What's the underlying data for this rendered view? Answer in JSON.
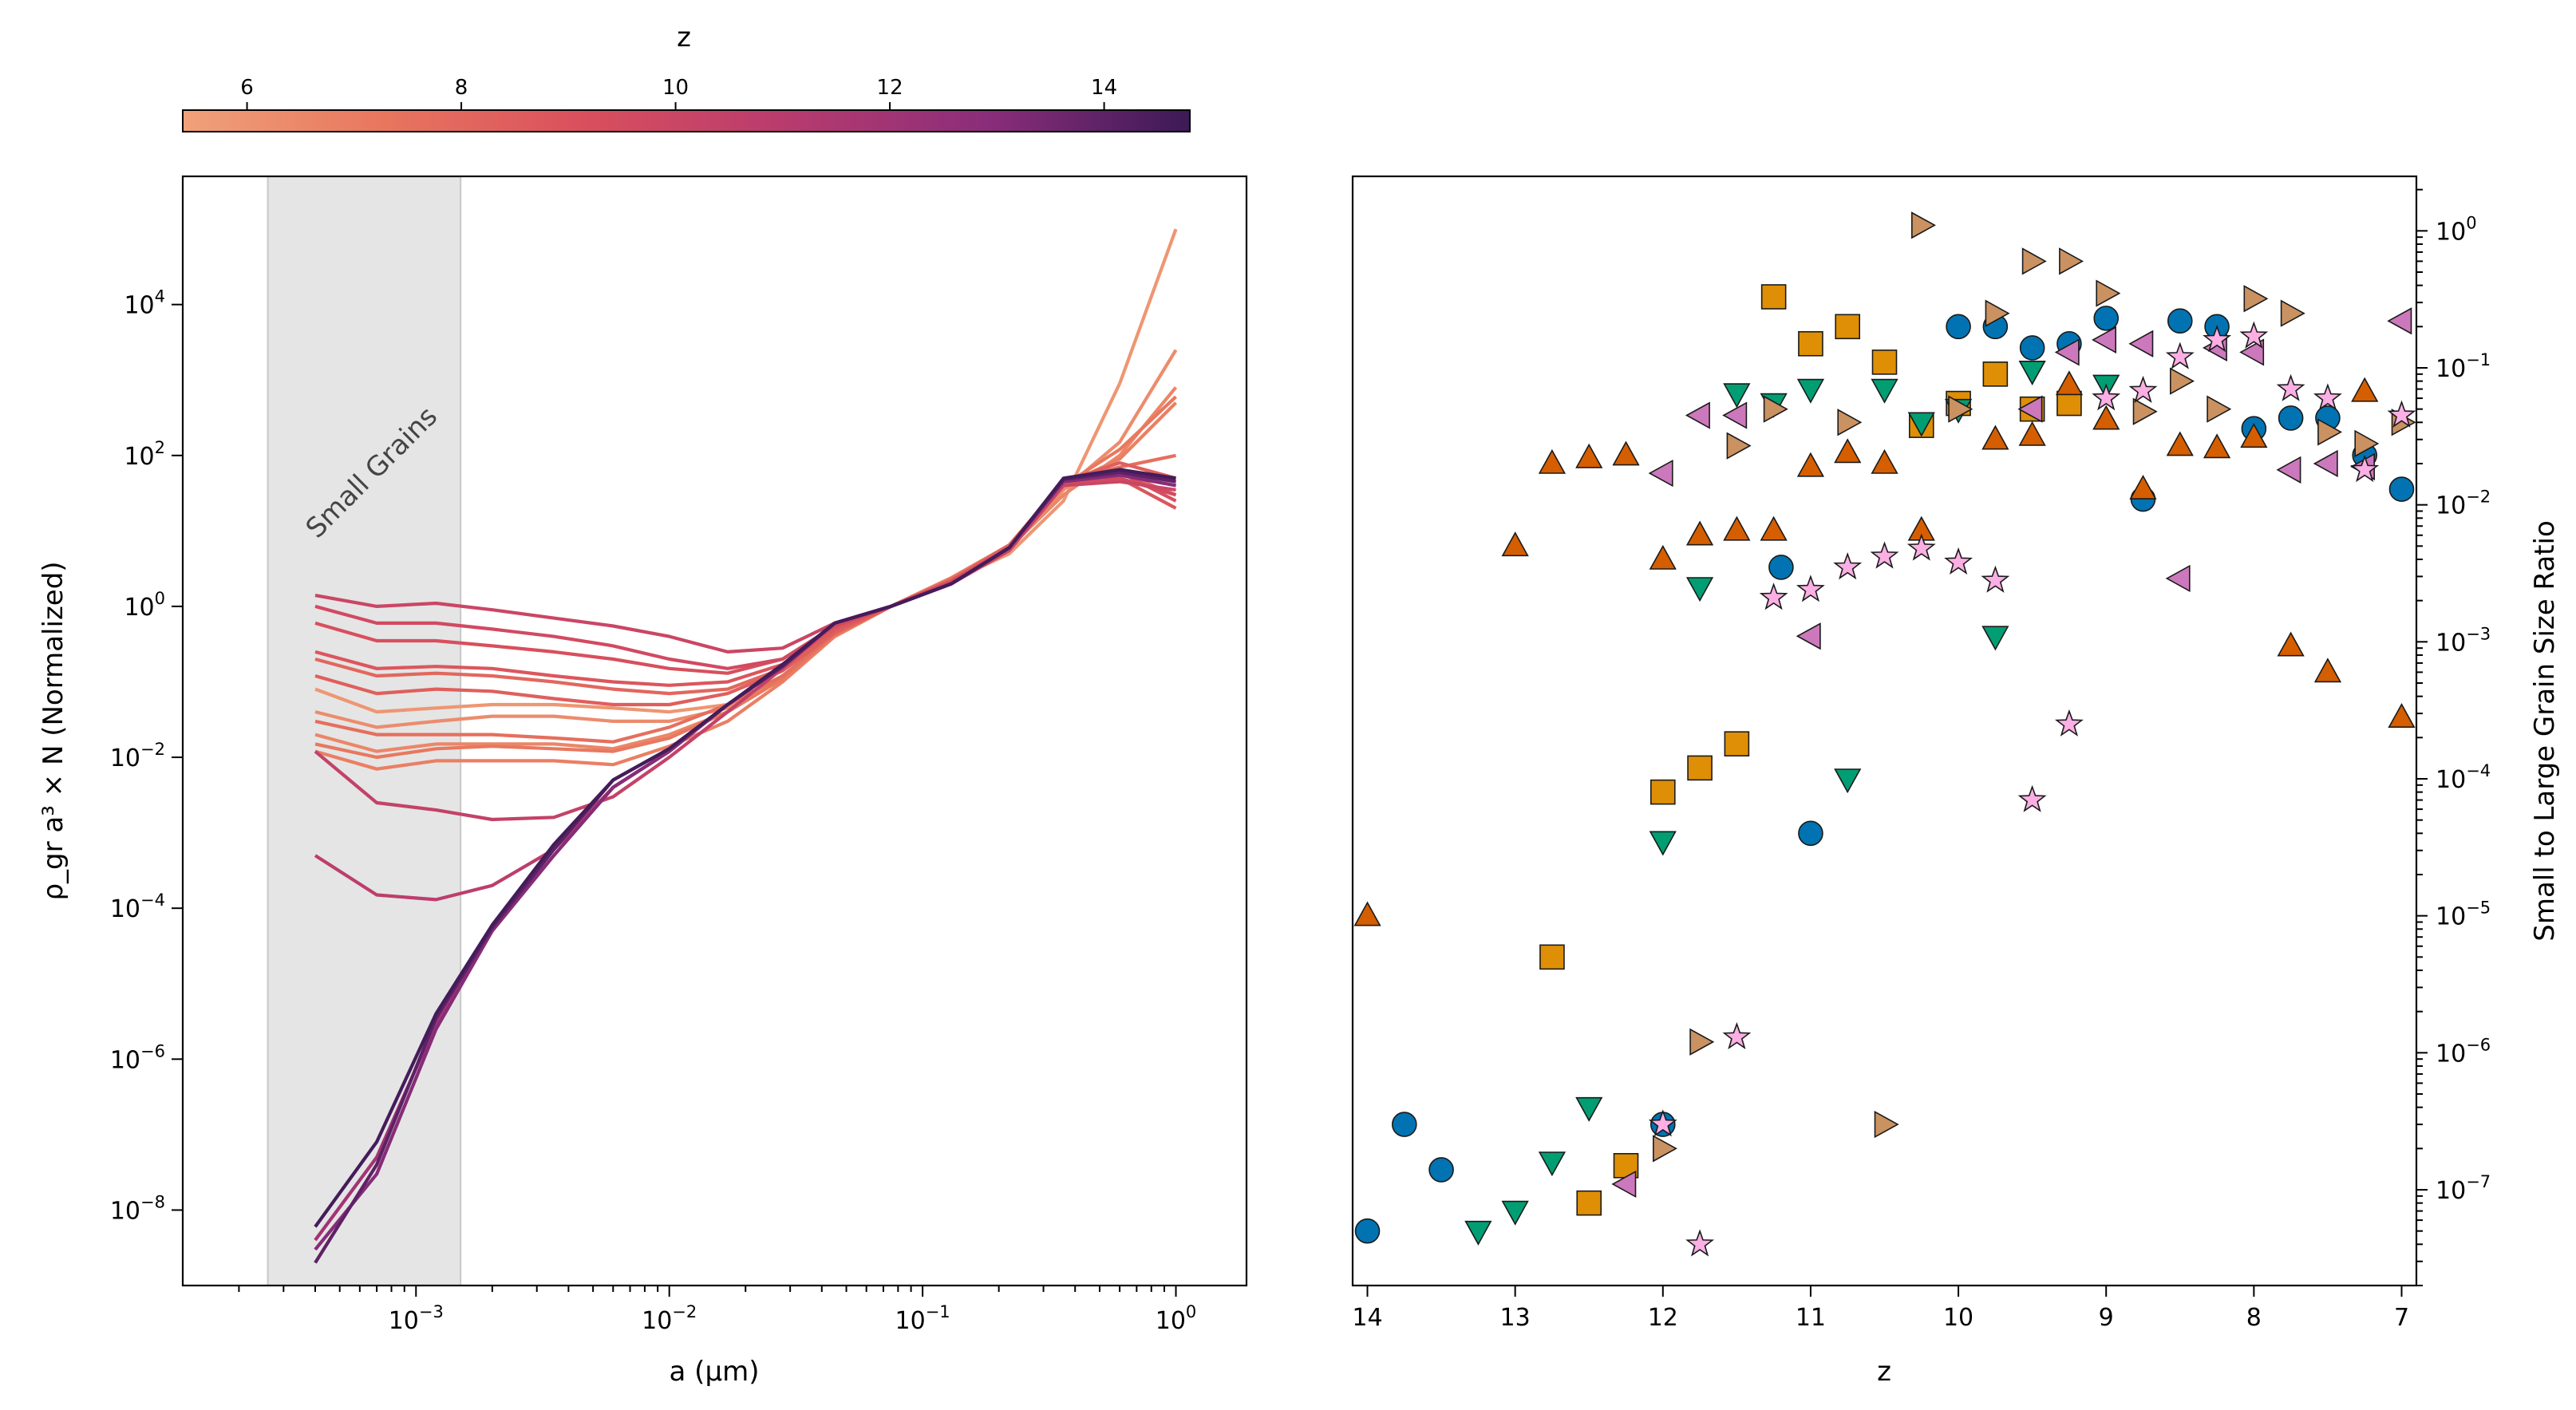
{
  "chart_data": [
    {
      "type": "line",
      "title": "",
      "xlabel": "a (μm)",
      "ylabel": "ρ_gr a³ × N (Normalized)",
      "xscale": "log",
      "yscale": "log",
      "xlim": [
        0.00012,
        1.9
      ],
      "ylim": [
        1e-09,
        500000.0
      ],
      "xticks": [
        {
          "value": 0.001,
          "label": "10",
          "exp": "−3"
        },
        {
          "value": 0.01,
          "label": "10",
          "exp": "−2"
        },
        {
          "value": 0.1,
          "label": "10",
          "exp": "−1"
        },
        {
          "value": 1,
          "label": "10",
          "exp": "0"
        }
      ],
      "yticks": [
        {
          "value": 1e-08,
          "label": "10",
          "exp": "−8"
        },
        {
          "value": 1e-06,
          "label": "10",
          "exp": "−6"
        },
        {
          "value": 0.0001,
          "label": "10",
          "exp": "−4"
        },
        {
          "value": 0.01,
          "label": "10",
          "exp": "−2"
        },
        {
          "value": 1,
          "label": "10",
          "exp": "0"
        },
        {
          "value": 100,
          "label": "10",
          "exp": "2"
        },
        {
          "value": 10000,
          "label": "10",
          "exp": "4"
        }
      ],
      "shaded_region": {
        "x": [
          0.00026,
          0.0015
        ],
        "label": "Small Grains"
      },
      "colorbar": {
        "label": "z",
        "range": [
          5.4,
          14.8
        ],
        "ticks": [
          6,
          8,
          10,
          12,
          14
        ],
        "colors": [
          "#f0a17a",
          "#e8765e",
          "#d94f5d",
          "#b83b6e",
          "#8a2d7a",
          "#3c1a56"
        ]
      },
      "x": [
        0.0004,
        0.0007,
        0.0012,
        0.002,
        0.0035,
        0.006,
        0.01,
        0.017,
        0.028,
        0.045,
        0.075,
        0.13,
        0.22,
        0.36,
        0.6,
        1.0
      ],
      "series": [
        {
          "z": 5.9,
          "values": [
            0.08,
            0.04,
            0.045,
            0.05,
            0.05,
            0.045,
            0.04,
            0.05,
            0.12,
            0.4,
            1,
            2.2,
            5,
            25,
            900,
            100000
          ]
        },
        {
          "z": 6.3,
          "values": [
            0.04,
            0.025,
            0.03,
            0.035,
            0.035,
            0.03,
            0.03,
            0.045,
            0.12,
            0.42,
            1,
            2.3,
            6,
            35,
            150,
            2500
          ]
        },
        {
          "z": 6.6,
          "values": [
            0.02,
            0.012,
            0.015,
            0.015,
            0.015,
            0.013,
            0.02,
            0.04,
            0.11,
            0.42,
            1,
            2.4,
            6,
            30,
            100,
            800
          ]
        },
        {
          "z": 6.9,
          "values": [
            0.012,
            0.007,
            0.009,
            0.009,
            0.009,
            0.008,
            0.014,
            0.03,
            0.1,
            0.4,
            1,
            2.4,
            6.5,
            40,
            90,
            500
          ]
        },
        {
          "z": 7.2,
          "values": [
            0.015,
            0.01,
            0.013,
            0.014,
            0.013,
            0.012,
            0.018,
            0.04,
            0.11,
            0.42,
            1,
            2.3,
            6,
            40,
            120,
            600
          ]
        },
        {
          "z": 7.6,
          "values": [
            0.03,
            0.02,
            0.02,
            0.02,
            0.018,
            0.016,
            0.025,
            0.05,
            0.12,
            0.43,
            1,
            2.3,
            6.5,
            45,
            70,
            100
          ]
        },
        {
          "z": 8.0,
          "values": [
            0.2,
            0.12,
            0.13,
            0.12,
            0.1,
            0.08,
            0.07,
            0.08,
            0.15,
            0.45,
            1,
            2.2,
            6,
            40,
            60,
            30
          ]
        },
        {
          "z": 8.4,
          "values": [
            0.12,
            0.07,
            0.08,
            0.075,
            0.06,
            0.05,
            0.05,
            0.07,
            0.14,
            0.45,
            1,
            2.2,
            6.5,
            45,
            80,
            50
          ]
        },
        {
          "z": 8.8,
          "values": [
            0.25,
            0.15,
            0.16,
            0.15,
            0.12,
            0.1,
            0.09,
            0.1,
            0.17,
            0.5,
            1,
            2.2,
            6,
            40,
            50,
            20
          ]
        },
        {
          "z": 9.2,
          "values": [
            0.6,
            0.35,
            0.35,
            0.3,
            0.25,
            0.2,
            0.15,
            0.13,
            0.2,
            0.55,
            1,
            2.1,
            6,
            45,
            60,
            25
          ]
        },
        {
          "z": 9.6,
          "values": [
            1.0,
            0.6,
            0.6,
            0.5,
            0.4,
            0.3,
            0.2,
            0.15,
            0.2,
            0.55,
            1,
            2.1,
            6,
            45,
            50,
            30
          ]
        },
        {
          "z": 10.0,
          "values": [
            1.4,
            1.0,
            1.1,
            0.9,
            0.7,
            0.55,
            0.4,
            0.25,
            0.28,
            0.6,
            1,
            2.0,
            5.5,
            40,
            45,
            35
          ]
        },
        {
          "z": 10.4,
          "values": [
            0.012,
            0.0025,
            0.002,
            0.0015,
            0.0016,
            0.003,
            0.01,
            0.04,
            0.15,
            0.6,
            1,
            2.0,
            6,
            45,
            60,
            50
          ]
        },
        {
          "z": 10.8,
          "values": [
            0.0005,
            0.00015,
            0.00013,
            0.0002,
            0.0006,
            0.004,
            0.012,
            0.05,
            0.16,
            0.6,
            1,
            2.0,
            6,
            45,
            60,
            45
          ]
        },
        {
          "z": 12.0,
          "values": [
            4e-09,
            5e-08,
            3e-06,
            5e-05,
            0.0005,
            0.004,
            0.012,
            0.05,
            0.16,
            0.6,
            1,
            2.0,
            6,
            45,
            55,
            40
          ]
        },
        {
          "z": 13.0,
          "values": [
            3e-09,
            3e-08,
            2.5e-06,
            5e-05,
            0.0005,
            0.004,
            0.012,
            0.05,
            0.16,
            0.6,
            1,
            2.0,
            6,
            45,
            55,
            40
          ]
        },
        {
          "z": 14.0,
          "values": [
            2e-09,
            4e-08,
            3.5e-06,
            5.5e-05,
            0.0006,
            0.005,
            0.013,
            0.05,
            0.16,
            0.6,
            1,
            2.0,
            6,
            48,
            60,
            45
          ]
        },
        {
          "z": 14.6,
          "values": [
            6e-09,
            8e-08,
            4e-06,
            6e-05,
            0.0007,
            0.005,
            0.013,
            0.05,
            0.17,
            0.6,
            1,
            2.0,
            6,
            50,
            65,
            50
          ]
        }
      ]
    },
    {
      "type": "scatter",
      "title": "",
      "xlabel": "z",
      "ylabel": "Small to Large Grain Size Ratio",
      "xscale": "linear",
      "xlim": [
        14.1,
        6.9
      ],
      "xreversed": true,
      "yscale": "log",
      "ylim": [
        2e-08,
        2.5
      ],
      "xticks": [
        14,
        13,
        12,
        11,
        10,
        9,
        8,
        7
      ],
      "yticks": [
        {
          "value": 1e-07,
          "label": "10",
          "exp": "−7"
        },
        {
          "value": 1e-06,
          "label": "10",
          "exp": "−6"
        },
        {
          "value": 1e-05,
          "label": "10",
          "exp": "−5"
        },
        {
          "value": 0.0001,
          "label": "10",
          "exp": "−4"
        },
        {
          "value": 0.001,
          "label": "10",
          "exp": "−3"
        },
        {
          "value": 0.01,
          "label": "10",
          "exp": "−2"
        },
        {
          "value": 0.1,
          "label": "10",
          "exp": "−1"
        },
        {
          "value": 1,
          "label": "10",
          "exp": "0"
        }
      ],
      "yaxis_side": "right",
      "series": [
        {
          "name": "circle",
          "marker": "circle",
          "color": "#0173b2",
          "points": [
            [
              14.0,
              5e-08
            ],
            [
              13.75,
              3e-07
            ],
            [
              13.5,
              1.4e-07
            ],
            [
              12.0,
              3e-07
            ],
            [
              11.2,
              0.0035
            ],
            [
              11.0,
              4e-05
            ],
            [
              10.0,
              0.2
            ],
            [
              9.75,
              0.2
            ],
            [
              9.5,
              0.14
            ],
            [
              9.25,
              0.15
            ],
            [
              9.0,
              0.23
            ],
            [
              8.75,
              0.011
            ],
            [
              8.5,
              0.22
            ],
            [
              8.25,
              0.2
            ],
            [
              8.0,
              0.036
            ],
            [
              7.75,
              0.043
            ],
            [
              7.5,
              0.043
            ],
            [
              7.25,
              0.023
            ],
            [
              7.0,
              0.013
            ]
          ]
        },
        {
          "name": "square",
          "marker": "square",
          "color": "#de8f05",
          "points": [
            [
              12.75,
              5e-06
            ],
            [
              12.5,
              8e-08
            ],
            [
              12.25,
              1.5e-07
            ],
            [
              12.0,
              8e-05
            ],
            [
              11.75,
              0.00012
            ],
            [
              11.5,
              0.00018
            ],
            [
              11.25,
              0.33
            ],
            [
              11.0,
              0.15
            ],
            [
              10.75,
              0.2
            ],
            [
              10.5,
              0.11
            ],
            [
              10.25,
              0.038
            ],
            [
              10.0,
              0.055
            ],
            [
              9.75,
              0.09
            ],
            [
              9.5,
              0.05
            ],
            [
              9.25,
              0.055
            ]
          ]
        },
        {
          "name": "triangle-down",
          "marker": "triangle-down",
          "color": "#029e73",
          "points": [
            [
              13.25,
              5e-08
            ],
            [
              13.0,
              7e-08
            ],
            [
              12.75,
              1.6e-07
            ],
            [
              12.5,
              4e-07
            ],
            [
              12.0,
              3.5e-05
            ],
            [
              11.75,
              0.0025
            ],
            [
              11.5,
              0.065
            ],
            [
              11.25,
              0.055
            ],
            [
              11.0,
              0.07
            ],
            [
              10.75,
              0.0001
            ],
            [
              10.5,
              0.07
            ],
            [
              10.25,
              0.04
            ],
            [
              10.0,
              0.05
            ],
            [
              9.75,
              0.0011
            ],
            [
              9.5,
              0.095
            ],
            [
              9.0,
              0.075
            ]
          ]
        },
        {
          "name": "triangle-up",
          "marker": "triangle-up",
          "color": "#d55e00",
          "points": [
            [
              14.0,
              1e-05
            ],
            [
              13.0,
              0.005
            ],
            [
              12.75,
              0.02
            ],
            [
              12.5,
              0.022
            ],
            [
              12.25,
              0.023
            ],
            [
              12.0,
              0.004
            ],
            [
              11.75,
              0.006
            ],
            [
              11.5,
              0.0065
            ],
            [
              11.25,
              0.0065
            ],
            [
              11.0,
              0.019
            ],
            [
              10.75,
              0.024
            ],
            [
              10.5,
              0.02
            ],
            [
              10.25,
              0.0065
            ],
            [
              9.75,
              0.03
            ],
            [
              9.5,
              0.032
            ],
            [
              9.25,
              0.075
            ],
            [
              9.0,
              0.042
            ],
            [
              8.75,
              0.013
            ],
            [
              8.5,
              0.027
            ],
            [
              8.25,
              0.026
            ],
            [
              8.0,
              0.031
            ],
            [
              7.75,
              0.00093
            ],
            [
              7.5,
              0.0006
            ],
            [
              7.25,
              0.067
            ],
            [
              7.0,
              0.00028
            ]
          ]
        },
        {
          "name": "triangle-left",
          "marker": "triangle-left",
          "color": "#cc78bc",
          "points": [
            [
              12.25,
              1.1e-07
            ],
            [
              12.0,
              0.017
            ],
            [
              11.75,
              0.045
            ],
            [
              11.5,
              0.045
            ],
            [
              11.0,
              0.0011
            ],
            [
              9.5,
              0.05
            ],
            [
              9.25,
              0.13
            ],
            [
              9.0,
              0.16
            ],
            [
              8.75,
              0.15
            ],
            [
              8.5,
              0.0029
            ],
            [
              8.25,
              0.14
            ],
            [
              8.0,
              0.13
            ],
            [
              7.75,
              0.018
            ],
            [
              7.5,
              0.02
            ],
            [
              7.25,
              0.019
            ],
            [
              7.0,
              0.22
            ]
          ]
        },
        {
          "name": "triangle-right",
          "marker": "triangle-right",
          "color": "#ca9161",
          "points": [
            [
              12.0,
              2e-07
            ],
            [
              11.75,
              1.2e-06
            ],
            [
              11.5,
              0.027
            ],
            [
              11.25,
              0.05
            ],
            [
              10.75,
              0.04
            ],
            [
              10.5,
              3e-07
            ],
            [
              10.25,
              1.1
            ],
            [
              10.0,
              0.05
            ],
            [
              9.75,
              0.25
            ],
            [
              9.5,
              0.6
            ],
            [
              9.25,
              0.6
            ],
            [
              9.0,
              0.35
            ],
            [
              8.75,
              0.048
            ],
            [
              8.5,
              0.08
            ],
            [
              8.25,
              0.05
            ],
            [
              8.0,
              0.32
            ],
            [
              7.75,
              0.25
            ],
            [
              7.5,
              0.034
            ],
            [
              7.25,
              0.028
            ],
            [
              7.0,
              0.04
            ]
          ]
        },
        {
          "name": "star",
          "marker": "star",
          "color": "#fbafe4",
          "points": [
            [
              12.0,
              3e-07
            ],
            [
              11.75,
              4e-08
            ],
            [
              11.5,
              1.3e-06
            ],
            [
              11.25,
              0.0021
            ],
            [
              11.0,
              0.0024
            ],
            [
              10.75,
              0.0035
            ],
            [
              10.5,
              0.0042
            ],
            [
              10.25,
              0.0048
            ],
            [
              10.0,
              0.0038
            ],
            [
              9.75,
              0.0028
            ],
            [
              9.5,
              7e-05
            ],
            [
              9.25,
              0.00025
            ],
            [
              9.0,
              0.06
            ],
            [
              8.75,
              0.068
            ],
            [
              8.5,
              0.12
            ],
            [
              8.25,
              0.16
            ],
            [
              8.0,
              0.17
            ],
            [
              7.75,
              0.07
            ],
            [
              7.5,
              0.06
            ],
            [
              7.25,
              0.018
            ],
            [
              7.0,
              0.045
            ]
          ]
        }
      ]
    }
  ]
}
